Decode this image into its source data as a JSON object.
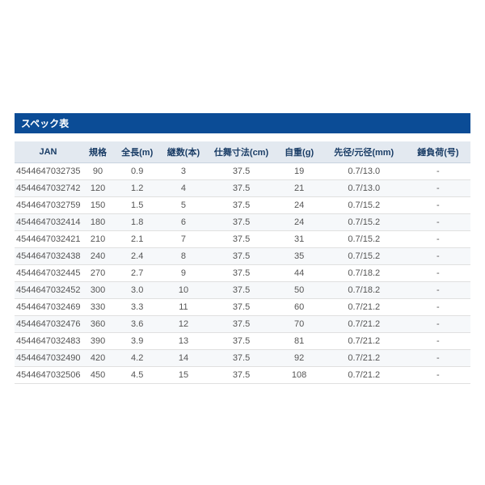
{
  "title": "スペック表",
  "columns": [
    "JAN",
    "規格",
    "全長(m)",
    "継数(本)",
    "仕舞寸法(cm)",
    "自重(g)",
    "先径/元径(mm)",
    "錘負荷(号)"
  ],
  "rows": [
    [
      "4544647032735",
      "90",
      "0.9",
      "3",
      "37.5",
      "19",
      "0.7/13.0",
      "-"
    ],
    [
      "4544647032742",
      "120",
      "1.2",
      "4",
      "37.5",
      "21",
      "0.7/13.0",
      "-"
    ],
    [
      "4544647032759",
      "150",
      "1.5",
      "5",
      "37.5",
      "24",
      "0.7/15.2",
      "-"
    ],
    [
      "4544647032414",
      "180",
      "1.8",
      "6",
      "37.5",
      "24",
      "0.7/15.2",
      "-"
    ],
    [
      "4544647032421",
      "210",
      "2.1",
      "7",
      "37.5",
      "31",
      "0.7/15.2",
      "-"
    ],
    [
      "4544647032438",
      "240",
      "2.4",
      "8",
      "37.5",
      "35",
      "0.7/15.2",
      "-"
    ],
    [
      "4544647032445",
      "270",
      "2.7",
      "9",
      "37.5",
      "44",
      "0.7/18.2",
      "-"
    ],
    [
      "4544647032452",
      "300",
      "3.0",
      "10",
      "37.5",
      "50",
      "0.7/18.2",
      "-"
    ],
    [
      "4544647032469",
      "330",
      "3.3",
      "11",
      "37.5",
      "60",
      "0.7/21.2",
      "-"
    ],
    [
      "4544647032476",
      "360",
      "3.6",
      "12",
      "37.5",
      "70",
      "0.7/21.2",
      "-"
    ],
    [
      "4544647032483",
      "390",
      "3.9",
      "13",
      "37.5",
      "81",
      "0.7/21.2",
      "-"
    ],
    [
      "4544647032490",
      "420",
      "4.2",
      "14",
      "37.5",
      "92",
      "0.7/21.2",
      "-"
    ],
    [
      "4544647032506",
      "450",
      "4.5",
      "15",
      "37.5",
      "108",
      "0.7/21.2",
      "-"
    ]
  ],
  "style": {
    "title_bg": "#0b4c96",
    "title_fg": "#ffffff",
    "header_bg": "#e3e9f0",
    "header_fg": "#1a3d66",
    "row_odd_bg": "#ffffff",
    "row_even_bg": "#f6f8fa",
    "border_color": "#e0e0e0",
    "font_size_body": 11,
    "font_size_title": 12
  }
}
